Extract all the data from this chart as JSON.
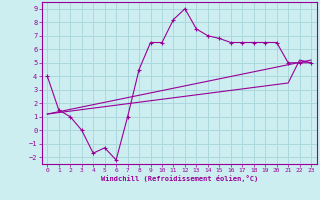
{
  "xlabel": "Windchill (Refroidissement éolien,°C)",
  "bg_color": "#cceef0",
  "grid_color": "#aad8dc",
  "line_color": "#990099",
  "xlim": [
    -0.5,
    23.5
  ],
  "ylim": [
    -2.5,
    9.5
  ],
  "xticks": [
    0,
    1,
    2,
    3,
    4,
    5,
    6,
    7,
    8,
    9,
    10,
    11,
    12,
    13,
    14,
    15,
    16,
    17,
    18,
    19,
    20,
    21,
    22,
    23
  ],
  "yticks": [
    -2,
    -1,
    0,
    1,
    2,
    3,
    4,
    5,
    6,
    7,
    8,
    9
  ],
  "line1_x": [
    0,
    1,
    2,
    3,
    4,
    5,
    6,
    7,
    8,
    9,
    10,
    11,
    12,
    13,
    14,
    15,
    16,
    17,
    18,
    19,
    20,
    21,
    22,
    23
  ],
  "line1_y": [
    4.0,
    1.5,
    1.0,
    0.0,
    -1.7,
    -1.3,
    -2.2,
    1.0,
    4.5,
    6.5,
    6.5,
    8.2,
    9.0,
    7.5,
    7.0,
    6.8,
    6.5,
    6.5,
    6.5,
    6.5,
    6.5,
    5.0,
    5.0,
    5.0
  ],
  "line2_x": [
    0,
    23
  ],
  "line2_y": [
    1.2,
    5.2
  ],
  "line3_x": [
    0,
    21,
    22,
    23
  ],
  "line3_y": [
    1.2,
    3.5,
    5.2,
    5.0
  ]
}
